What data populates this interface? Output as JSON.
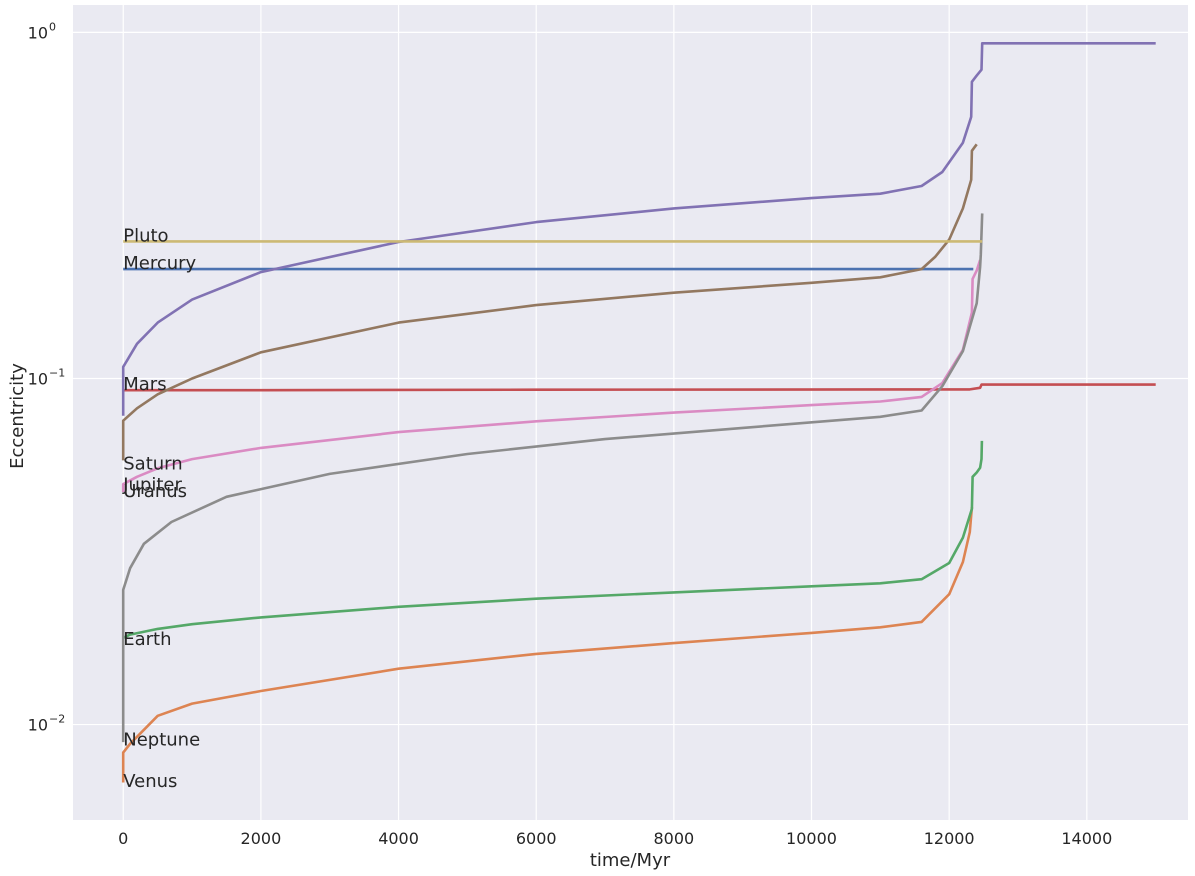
{
  "chart_data": {
    "type": "line",
    "xlabel": "time/Myr",
    "ylabel": "Eccentricity",
    "xlim": [
      -730,
      15470
    ],
    "ylim": [
      0.0053,
      1.2
    ],
    "y_scale": "log",
    "x_ticks": [
      0,
      2000,
      4000,
      6000,
      8000,
      10000,
      12000,
      14000
    ],
    "x_tick_labels": [
      "0",
      "2000",
      "4000",
      "6000",
      "8000",
      "10000",
      "12000",
      "14000"
    ],
    "y_ticks": [
      0.01,
      0.1,
      1
    ],
    "y_tick_labels": [
      {
        "base": "10",
        "exp": "−2"
      },
      {
        "base": "10",
        "exp": "−1"
      },
      {
        "base": "10",
        "exp": "0"
      }
    ],
    "grid": true,
    "background_color": "#eaeaf2",
    "grid_color": "#ffffff",
    "series": [
      {
        "name": "Mercury",
        "color": "#4c72b0",
        "x": [
          0,
          12350
        ],
        "y": [
          0.207,
          0.207
        ]
      },
      {
        "name": "Venus",
        "color": "#dd8452",
        "x": [
          0,
          0,
          100,
          500,
          1000,
          2000,
          4000,
          6000,
          8000,
          10000,
          11000,
          11600,
          12000,
          12200,
          12300,
          12330
        ],
        "y": [
          0.0068,
          0.0083,
          0.0088,
          0.0106,
          0.0115,
          0.0125,
          0.0145,
          0.016,
          0.0172,
          0.0184,
          0.0191,
          0.0198,
          0.0238,
          0.0295,
          0.036,
          0.0425
        ]
      },
      {
        "name": "Earth",
        "color": "#55a868",
        "x": [
          0,
          100,
          500,
          1000,
          2000,
          4000,
          6000,
          8000,
          10000,
          11000,
          11600,
          12000,
          12200,
          12330,
          12340,
          12400,
          12450,
          12470,
          12475
        ],
        "y": [
          0.0178,
          0.0182,
          0.0189,
          0.0195,
          0.0204,
          0.0219,
          0.0231,
          0.0241,
          0.0251,
          0.0256,
          0.0263,
          0.0293,
          0.0347,
          0.042,
          0.052,
          0.0535,
          0.0552,
          0.0585,
          0.066
        ]
      },
      {
        "name": "Mars",
        "color": "#c44e52",
        "x": [
          0,
          2000,
          6000,
          11600,
          12300,
          12450,
          12470,
          15000
        ],
        "y": [
          0.0925,
          0.0925,
          0.0928,
          0.093,
          0.093,
          0.094,
          0.096,
          0.096
        ]
      },
      {
        "name": "Jupiter",
        "color": "#8172b3",
        "x": [
          0,
          0,
          200,
          500,
          1000,
          2000,
          4000,
          6000,
          8000,
          10000,
          11000,
          11600,
          11900,
          12200,
          12320,
          12330,
          12400,
          12470,
          12480,
          15000
        ],
        "y": [
          0.078,
          0.108,
          0.126,
          0.145,
          0.169,
          0.203,
          0.248,
          0.283,
          0.31,
          0.332,
          0.342,
          0.36,
          0.395,
          0.48,
          0.57,
          0.72,
          0.75,
          0.78,
          0.93,
          0.93
        ]
      },
      {
        "name": "Saturn",
        "color": "#937860",
        "x": [
          0,
          0,
          200,
          500,
          1000,
          2000,
          4000,
          6000,
          8000,
          10000,
          11000,
          11600,
          11800,
          12000,
          12200,
          12320,
          12330,
          12400
        ],
        "y": [
          0.058,
          0.0755,
          0.082,
          0.09,
          0.1,
          0.119,
          0.145,
          0.163,
          0.177,
          0.189,
          0.196,
          0.207,
          0.225,
          0.252,
          0.31,
          0.375,
          0.455,
          0.475
        ]
      },
      {
        "name": "Uranus",
        "color": "#da8bc3",
        "x": [
          0,
          0,
          200,
          500,
          1000,
          2000,
          4000,
          6000,
          8000,
          10000,
          11000,
          11600,
          11900,
          12200,
          12330,
          12340,
          12400,
          12450
        ],
        "y": [
          0.047,
          0.0495,
          0.052,
          0.055,
          0.0585,
          0.063,
          0.07,
          0.0752,
          0.0797,
          0.0838,
          0.0858,
          0.0885,
          0.097,
          0.121,
          0.155,
          0.194,
          0.205,
          0.22
        ]
      },
      {
        "name": "Neptune",
        "color": "#8c8c8c",
        "x": [
          0,
          0,
          100,
          300,
          700,
          1500,
          3000,
          5000,
          7000,
          9000,
          11000,
          11600,
          11900,
          12200,
          12300,
          12400,
          12450,
          12460,
          12480
        ],
        "y": [
          0.0089,
          0.0245,
          0.0283,
          0.0333,
          0.0385,
          0.0455,
          0.053,
          0.0605,
          0.0668,
          0.072,
          0.0775,
          0.0808,
          0.095,
          0.12,
          0.141,
          0.165,
          0.21,
          0.228,
          0.3
        ]
      },
      {
        "name": "Pluto",
        "color": "#ccb974",
        "x": [
          0,
          12480
        ],
        "y": [
          0.249,
          0.249
        ]
      }
    ],
    "labels": [
      {
        "text": "Pluto",
        "x": 0,
        "y": 0.249
      },
      {
        "text": "Mercury",
        "x": 0,
        "y": 0.207
      },
      {
        "text": "Mars",
        "x": 0,
        "y": 0.0925
      },
      {
        "text": "Saturn",
        "x": 0,
        "y": 0.0545
      },
      {
        "text": "Jupiter",
        "x": 0,
        "y": 0.0475
      },
      {
        "text": "Uranus",
        "x": 0,
        "y": 0.0455
      },
      {
        "text": "Earth",
        "x": 0,
        "y": 0.017
      },
      {
        "text": "Neptune",
        "x": 0,
        "y": 0.0087
      },
      {
        "text": "Venus",
        "x": 0,
        "y": 0.0066
      }
    ]
  }
}
